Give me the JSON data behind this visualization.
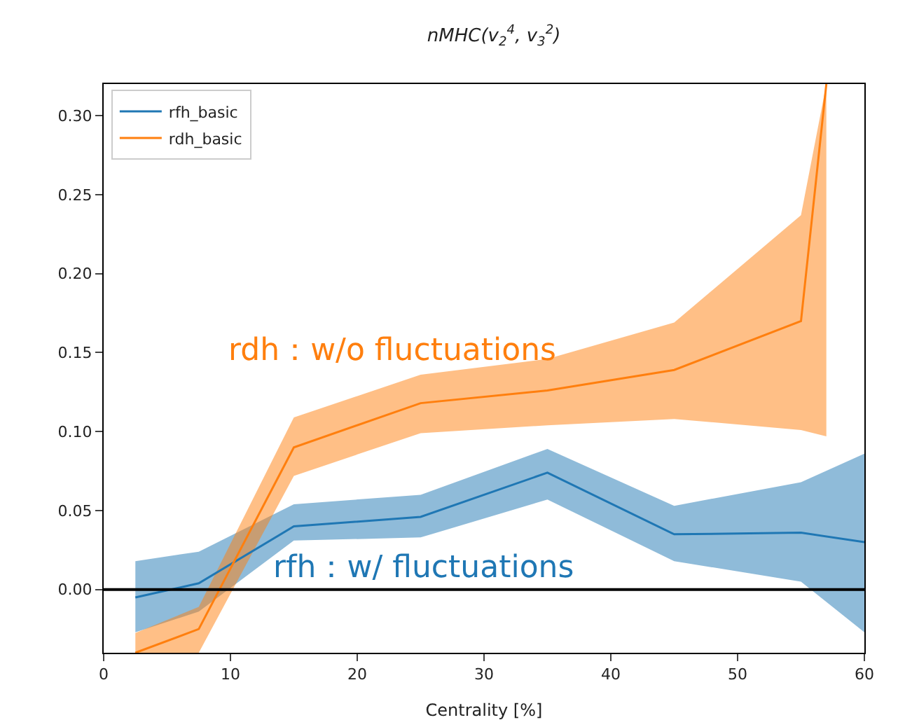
{
  "chart_data": {
    "type": "line",
    "title": "nMHC(v$_{2}$$^{4}$, v$_{3}$$^{2}$)",
    "xlabel": "Centrality [%]",
    "series": [
      {
        "name": "rfh_basic",
        "color": "#1f77b4",
        "x": [
          2.5,
          7.5,
          15,
          25,
          35,
          45,
          55,
          60
        ],
        "values": [
          -0.005,
          0.004,
          0.04,
          0.046,
          0.074,
          0.035,
          0.036,
          0.03
        ],
        "lower": [
          -0.027,
          -0.014,
          0.031,
          0.033,
          0.057,
          0.018,
          0.005,
          -0.027
        ],
        "upper": [
          0.018,
          0.024,
          0.054,
          0.06,
          0.089,
          0.053,
          0.068,
          0.086
        ]
      },
      {
        "name": "rdh_basic",
        "color": "#ff7f0e",
        "x": [
          2.5,
          7.5,
          15,
          25,
          35,
          45,
          55,
          57
        ],
        "values": [
          -0.04,
          -0.025,
          0.09,
          0.118,
          0.126,
          0.139,
          0.17,
          0.32
        ],
        "lower": [
          -0.04,
          -0.04,
          0.072,
          0.099,
          0.104,
          0.108,
          0.101,
          0.097
        ],
        "upper": [
          -0.0275,
          -0.011,
          0.109,
          0.136,
          0.146,
          0.169,
          0.237,
          0.32
        ]
      }
    ],
    "xlim": [
      0,
      60
    ],
    "xticks": [
      0,
      10,
      20,
      30,
      40,
      50,
      60
    ],
    "ylim": [
      -0.04,
      0.32
    ],
    "yticks": [
      {
        "value": 0,
        "label": "0.00"
      },
      {
        "value": 0.05,
        "label": "0.05"
      },
      {
        "value": 0.1,
        "label": "0.10"
      },
      {
        "value": 0.15,
        "label": "0.15"
      },
      {
        "value": 0.2,
        "label": "0.20"
      },
      {
        "value": 0.25,
        "label": "0.25"
      },
      {
        "value": 0.3,
        "label": "0.30"
      }
    ],
    "ref_lines": [
      {
        "axis": "y",
        "value": 0,
        "color": "#000000"
      }
    ],
    "annotations": [
      "rdh：w/o fluctuations",
      "rfh：w/ fluctuations"
    ],
    "grid": false,
    "legend": "top left",
    "line_style": "solid",
    "marker": "none"
  }
}
